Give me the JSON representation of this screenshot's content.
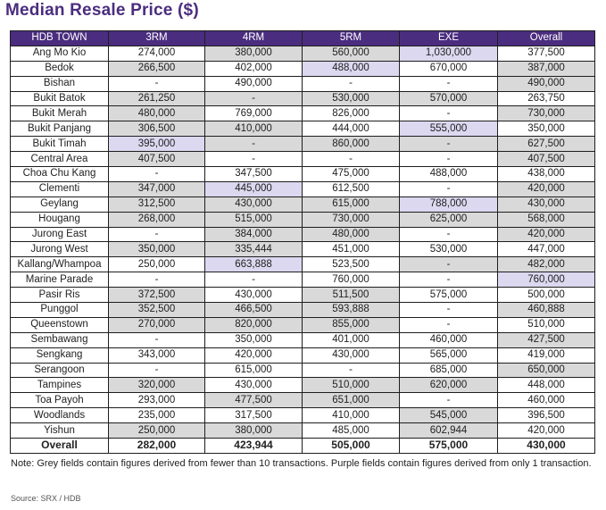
{
  "title": "Median Resale Price ($)",
  "columns": [
    "HDB TOWN",
    "3RM",
    "4RM",
    "5RM",
    "EXE",
    "Overall"
  ],
  "rows": [
    {
      "town": "Ang Mo Kio",
      "cells": [
        "274,000",
        "380,000",
        "560,000",
        "1,030,000",
        "377,500"
      ],
      "shade": [
        "w",
        "g",
        "g",
        "p",
        "w"
      ]
    },
    {
      "town": "Bedok",
      "cells": [
        "266,500",
        "402,000",
        "488,000",
        "670,000",
        "387,000"
      ],
      "shade": [
        "g",
        "w",
        "p",
        "w",
        "g"
      ]
    },
    {
      "town": "Bishan",
      "cells": [
        "-",
        "490,000",
        "-",
        "-",
        "490,000"
      ],
      "shade": [
        "w",
        "w",
        "w",
        "w",
        "g"
      ]
    },
    {
      "town": "Bukit Batok",
      "cells": [
        "261,250",
        "-",
        "530,000",
        "570,000",
        "263,750"
      ],
      "shade": [
        "g",
        "g",
        "g",
        "g",
        "w"
      ]
    },
    {
      "town": "Bukit Merah",
      "cells": [
        "480,000",
        "769,000",
        "826,000",
        "-",
        "730,000"
      ],
      "shade": [
        "g",
        "w",
        "w",
        "w",
        "g"
      ]
    },
    {
      "town": "Bukit Panjang",
      "cells": [
        "306,500",
        "410,000",
        "444,000",
        "555,000",
        "350,000"
      ],
      "shade": [
        "g",
        "g",
        "w",
        "p",
        "w"
      ]
    },
    {
      "town": "Bukit Timah",
      "cells": [
        "395,000",
        "-",
        "860,000",
        "-",
        "627,500"
      ],
      "shade": [
        "p",
        "g",
        "g",
        "g",
        "g"
      ]
    },
    {
      "town": "Central Area",
      "cells": [
        "407,500",
        "-",
        "-",
        "-",
        "407,500"
      ],
      "shade": [
        "g",
        "w",
        "w",
        "w",
        "g"
      ]
    },
    {
      "town": "Choa Chu Kang",
      "cells": [
        "-",
        "347,500",
        "475,000",
        "488,000",
        "438,000"
      ],
      "shade": [
        "w",
        "w",
        "w",
        "w",
        "w"
      ]
    },
    {
      "town": "Clementi",
      "cells": [
        "347,000",
        "445,000",
        "612,500",
        "-",
        "420,000"
      ],
      "shade": [
        "g",
        "p",
        "w",
        "w",
        "g"
      ]
    },
    {
      "town": "Geylang",
      "cells": [
        "312,500",
        "430,000",
        "615,000",
        "788,000",
        "430,000"
      ],
      "shade": [
        "g",
        "g",
        "g",
        "p",
        "g"
      ]
    },
    {
      "town": "Hougang",
      "cells": [
        "268,000",
        "515,000",
        "730,000",
        "625,000",
        "568,000"
      ],
      "shade": [
        "g",
        "g",
        "g",
        "g",
        "g"
      ]
    },
    {
      "town": "Jurong East",
      "cells": [
        "-",
        "384,000",
        "480,000",
        "-",
        "420,000"
      ],
      "shade": [
        "w",
        "g",
        "g",
        "w",
        "g"
      ]
    },
    {
      "town": "Jurong West",
      "cells": [
        "350,000",
        "335,444",
        "451,000",
        "530,000",
        "447,000"
      ],
      "shade": [
        "g",
        "g",
        "w",
        "w",
        "w"
      ]
    },
    {
      "town": "Kallang/Whampoa",
      "cells": [
        "250,000",
        "663,888",
        "523,500",
        "-",
        "482,000"
      ],
      "shade": [
        "w",
        "p",
        "w",
        "g",
        "g"
      ]
    },
    {
      "town": "Marine Parade",
      "cells": [
        "-",
        "-",
        "760,000",
        "-",
        "760,000"
      ],
      "shade": [
        "w",
        "w",
        "w",
        "w",
        "p"
      ]
    },
    {
      "town": "Pasir Ris",
      "cells": [
        "372,500",
        "430,000",
        "511,500",
        "575,000",
        "500,000"
      ],
      "shade": [
        "g",
        "w",
        "g",
        "w",
        "w"
      ]
    },
    {
      "town": "Punggol",
      "cells": [
        "352,500",
        "466,500",
        "593,888",
        "-",
        "460,888"
      ],
      "shade": [
        "g",
        "g",
        "g",
        "w",
        "g"
      ]
    },
    {
      "town": "Queenstown",
      "cells": [
        "270,000",
        "820,000",
        "855,000",
        "-",
        "510,000"
      ],
      "shade": [
        "g",
        "g",
        "g",
        "w",
        "w"
      ]
    },
    {
      "town": "Sembawang",
      "cells": [
        "-",
        "350,000",
        "401,000",
        "460,000",
        "427,500"
      ],
      "shade": [
        "w",
        "w",
        "w",
        "w",
        "g"
      ]
    },
    {
      "town": "Sengkang",
      "cells": [
        "343,000",
        "420,000",
        "430,000",
        "565,000",
        "419,000"
      ],
      "shade": [
        "w",
        "w",
        "w",
        "w",
        "w"
      ]
    },
    {
      "town": "Serangoon",
      "cells": [
        "-",
        "615,000",
        "-",
        "685,000",
        "650,000"
      ],
      "shade": [
        "w",
        "w",
        "w",
        "w",
        "g"
      ]
    },
    {
      "town": "Tampines",
      "cells": [
        "320,000",
        "430,000",
        "510,000",
        "620,000",
        "448,000"
      ],
      "shade": [
        "g",
        "w",
        "g",
        "g",
        "w"
      ]
    },
    {
      "town": "Toa Payoh",
      "cells": [
        "293,000",
        "477,500",
        "651,000",
        "-",
        "460,000"
      ],
      "shade": [
        "w",
        "g",
        "g",
        "w",
        "w"
      ]
    },
    {
      "town": "Woodlands",
      "cells": [
        "235,000",
        "317,500",
        "410,000",
        "545,000",
        "396,500"
      ],
      "shade": [
        "w",
        "w",
        "w",
        "g",
        "w"
      ]
    },
    {
      "town": "Yishun",
      "cells": [
        "250,000",
        "380,000",
        "485,000",
        "602,944",
        "420,000"
      ],
      "shade": [
        "g",
        "g",
        "w",
        "g",
        "w"
      ]
    }
  ],
  "total": {
    "label": "Overall",
    "cells": [
      "282,000",
      "423,944",
      "505,000",
      "575,000",
      "430,000"
    ]
  },
  "note": "Note: Grey fields contain figures derived from fewer than 10 transactions. Purple fields contain figures derived from only 1 transaction.",
  "source": "Source: SRX / HDB",
  "colors": {
    "header": "#4b2d7f",
    "grey": "#d9d9d9",
    "purple": "#dcd8f0",
    "title": "#4b2d7f"
  }
}
